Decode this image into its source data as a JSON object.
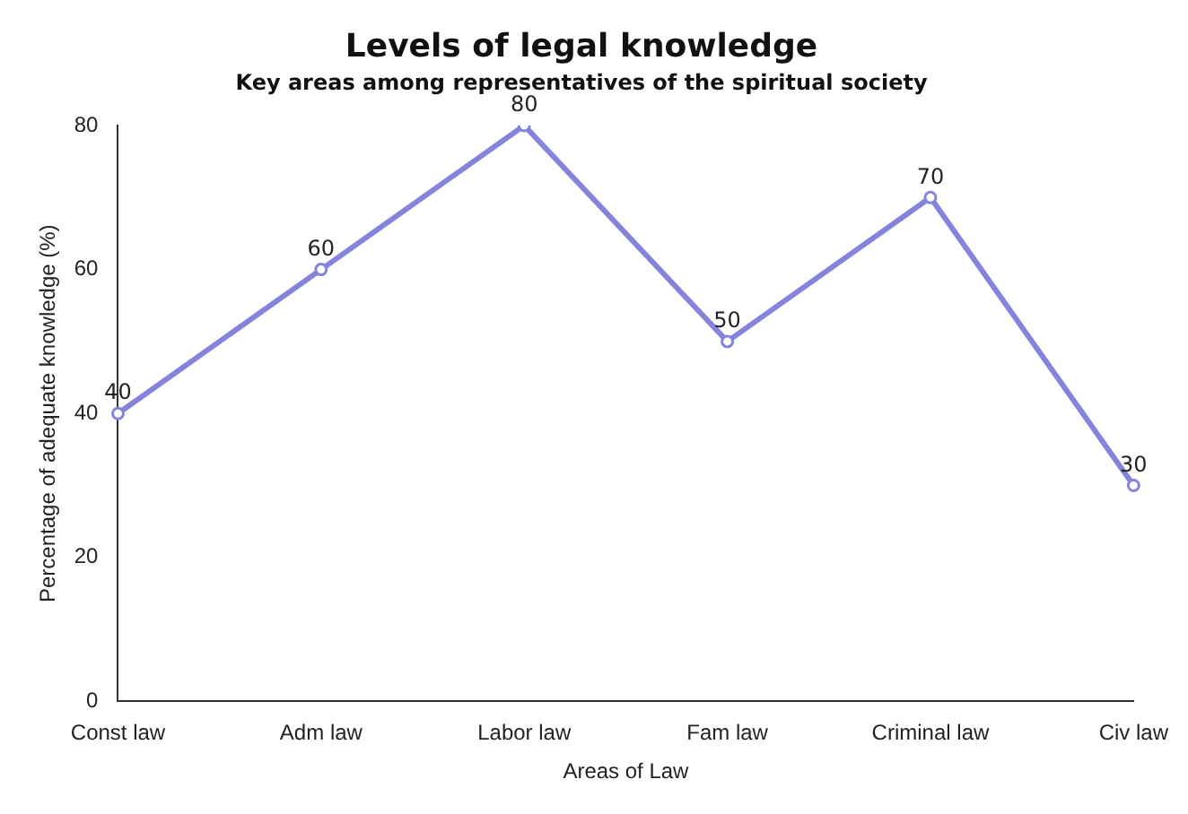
{
  "chart_data": {
    "type": "line",
    "title": "Levels of legal knowledge",
    "subtitle": "Key areas among representatives of the spiritual society",
    "xlabel": "Areas of Law",
    "ylabel": "Percentage of adequate knowledge (%)",
    "categories": [
      "Const law",
      "Adm law",
      "Labor law",
      "Fam law",
      "Criminal law",
      "Civ law"
    ],
    "series": [
      {
        "color": "#8484dc",
        "values": [
          40,
          60,
          80,
          50,
          70,
          30
        ]
      }
    ],
    "ylim": [
      0,
      80
    ],
    "yticks": [
      0,
      20,
      40,
      60,
      80
    ],
    "grid": false,
    "legend": false,
    "marker": "circle",
    "line_style": "solid",
    "data_labels": true
  }
}
